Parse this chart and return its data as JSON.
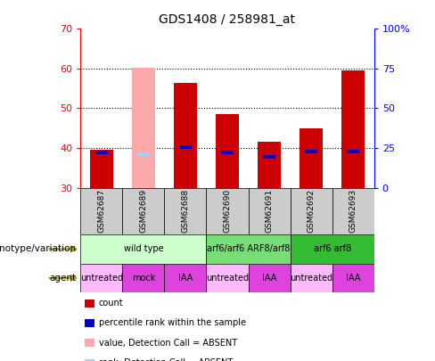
{
  "title": "GDS1408 / 258981_at",
  "samples": [
    "GSM62687",
    "GSM62689",
    "GSM62688",
    "GSM62690",
    "GSM62691",
    "GSM62692",
    "GSM62693"
  ],
  "bar_bottom": 30,
  "ylim": [
    30,
    70
  ],
  "yticks": [
    30,
    40,
    50,
    60,
    70
  ],
  "right_yticks": [
    0,
    25,
    50,
    75,
    100
  ],
  "count_values": [
    39.5,
    60.2,
    56.5,
    48.5,
    41.5,
    45.0,
    59.5
  ],
  "rank_values": [
    39.0,
    38.5,
    40.2,
    38.8,
    37.8,
    39.2,
    39.2
  ],
  "absent_detection": [
    false,
    true,
    false,
    false,
    false,
    false,
    false
  ],
  "bar_color_normal": "#cc0000",
  "bar_color_absent": "#ffaaaa",
  "rank_color_normal": "#0000cc",
  "rank_color_absent": "#aaccff",
  "genotype_groups": [
    {
      "label": "wild type",
      "span": [
        0,
        2
      ],
      "color": "#ccffcc"
    },
    {
      "label": "arf6/arf6 ARF8/arf8",
      "span": [
        3,
        4
      ],
      "color": "#77dd77"
    },
    {
      "label": "arf6 arf8",
      "span": [
        5,
        6
      ],
      "color": "#33bb33"
    }
  ],
  "agent_groups": [
    {
      "label": "untreated",
      "span": [
        0,
        0
      ],
      "color": "#ffbbff"
    },
    {
      "label": "mock",
      "span": [
        1,
        1
      ],
      "color": "#dd44dd"
    },
    {
      "label": "IAA",
      "span": [
        2,
        2
      ],
      "color": "#dd44dd"
    },
    {
      "label": "untreated",
      "span": [
        3,
        3
      ],
      "color": "#ffbbff"
    },
    {
      "label": "IAA",
      "span": [
        4,
        4
      ],
      "color": "#dd44dd"
    },
    {
      "label": "untreated",
      "span": [
        5,
        5
      ],
      "color": "#ffbbff"
    },
    {
      "label": "IAA",
      "span": [
        6,
        6
      ],
      "color": "#dd44dd"
    }
  ],
  "legend_items": [
    {
      "label": "count",
      "color": "#cc0000"
    },
    {
      "label": "percentile rank within the sample",
      "color": "#0000cc"
    },
    {
      "label": "value, Detection Call = ABSENT",
      "color": "#ffaaaa"
    },
    {
      "label": "rank, Detection Call = ABSENT",
      "color": "#aaccff"
    }
  ],
  "genotype_label": "genotype/variation",
  "agent_label": "agent",
  "arrow_color": "#999900"
}
